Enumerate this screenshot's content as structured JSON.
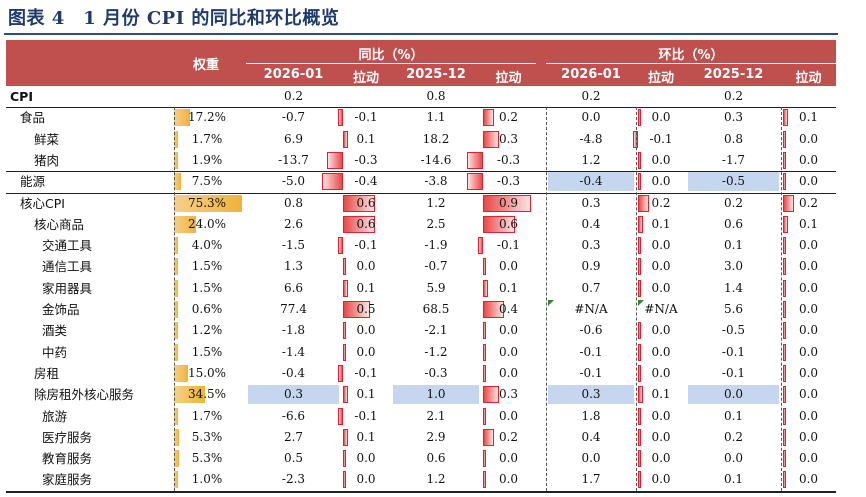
{
  "caption": "图表 4　1 月份 CPI 的同比和环比概览",
  "header": {
    "weight": "权重",
    "yoy_group": "同比（%）",
    "mom_group": "环比（%）",
    "cols": [
      "2026-01",
      "拉动",
      "2025-12",
      "拉动",
      "2026-01",
      "拉动",
      "2025-12",
      "拉动"
    ]
  },
  "colors": {
    "header": "#c0504d",
    "highlight": "#c6d6ee",
    "weight_bar": "#f2b13a",
    "pull_bar": "#e94848"
  },
  "rows": [
    {
      "name": "CPI",
      "indent": 0,
      "bold": true,
      "weight": "",
      "yoy_cur": "0.2",
      "yoy_cur_pull": "",
      "yoy_prev": "0.8",
      "yoy_prev_pull": "",
      "mom_cur": "0.2",
      "mom_cur_pull": "",
      "mom_prev": "0.2",
      "mom_prev_pull": ""
    },
    {
      "name": "食品",
      "indent": 1,
      "weight": "17.2%",
      "yoy_cur": "-0.7",
      "yoy_cur_pull": "-0.1",
      "yoy_prev": "1.1",
      "yoy_prev_pull": "0.2",
      "mom_cur": "0.0",
      "mom_cur_pull": "0.0",
      "mom_prev": "0.3",
      "mom_prev_pull": "0.1"
    },
    {
      "name": "鲜菜",
      "indent": 2,
      "weight": "1.7%",
      "yoy_cur": "6.9",
      "yoy_cur_pull": "0.1",
      "yoy_prev": "18.2",
      "yoy_prev_pull": "0.3",
      "mom_cur": "-4.8",
      "mom_cur_pull": "-0.1",
      "mom_prev": "0.8",
      "mom_prev_pull": "0.0"
    },
    {
      "name": "猪肉",
      "indent": 2,
      "weight": "1.9%",
      "yoy_cur": "-13.7",
      "yoy_cur_pull": "-0.3",
      "yoy_prev": "-14.6",
      "yoy_prev_pull": "-0.3",
      "mom_cur": "1.2",
      "mom_cur_pull": "0.0",
      "mom_prev": "-1.7",
      "mom_prev_pull": "0.0"
    },
    {
      "name": "能源",
      "indent": 1,
      "weight": "7.5%",
      "yoy_cur": "-5.0",
      "yoy_cur_pull": "-0.4",
      "yoy_prev": "-3.8",
      "yoy_prev_pull": "-0.3",
      "mom_cur": "-0.4",
      "mom_cur_pull": "0.0",
      "mom_prev": "-0.5",
      "mom_prev_pull": "0.0"
    },
    {
      "name": "核心CPI",
      "indent": 1,
      "weight": "75.3%",
      "yoy_cur": "0.8",
      "yoy_cur_pull": "0.6",
      "yoy_prev": "1.2",
      "yoy_prev_pull": "0.9",
      "mom_cur": "0.3",
      "mom_cur_pull": "0.2",
      "mom_prev": "0.2",
      "mom_prev_pull": "0.2"
    },
    {
      "name": "核心商品",
      "indent": 2,
      "weight": "24.0%",
      "yoy_cur": "2.6",
      "yoy_cur_pull": "0.6",
      "yoy_prev": "2.5",
      "yoy_prev_pull": "0.6",
      "mom_cur": "0.4",
      "mom_cur_pull": "0.1",
      "mom_prev": "0.6",
      "mom_prev_pull": "0.1"
    },
    {
      "name": "交通工具",
      "indent": 3,
      "weight": "4.0%",
      "yoy_cur": "-1.5",
      "yoy_cur_pull": "-0.1",
      "yoy_prev": "-1.9",
      "yoy_prev_pull": "-0.1",
      "mom_cur": "0.3",
      "mom_cur_pull": "0.0",
      "mom_prev": "0.1",
      "mom_prev_pull": "0.0"
    },
    {
      "name": "通信工具",
      "indent": 3,
      "weight": "1.5%",
      "yoy_cur": "1.3",
      "yoy_cur_pull": "0.0",
      "yoy_prev": "-0.7",
      "yoy_prev_pull": "0.0",
      "mom_cur": "0.9",
      "mom_cur_pull": "0.0",
      "mom_prev": "3.0",
      "mom_prev_pull": "0.0"
    },
    {
      "name": "家用器具",
      "indent": 3,
      "weight": "1.5%",
      "yoy_cur": "6.6",
      "yoy_cur_pull": "0.1",
      "yoy_prev": "5.9",
      "yoy_prev_pull": "0.1",
      "mom_cur": "0.7",
      "mom_cur_pull": "0.0",
      "mom_prev": "1.4",
      "mom_prev_pull": "0.0"
    },
    {
      "name": "金饰品",
      "indent": 3,
      "weight": "0.6%",
      "yoy_cur": "77.4",
      "yoy_cur_pull": "0.5",
      "yoy_prev": "68.5",
      "yoy_prev_pull": "0.4",
      "mom_cur": "#N/A",
      "mom_cur_pull": "#N/A",
      "mom_prev": "5.6",
      "mom_prev_pull": "0.0"
    },
    {
      "name": "酒类",
      "indent": 3,
      "weight": "1.2%",
      "yoy_cur": "-1.8",
      "yoy_cur_pull": "0.0",
      "yoy_prev": "-2.1",
      "yoy_prev_pull": "0.0",
      "mom_cur": "-0.6",
      "mom_cur_pull": "0.0",
      "mom_prev": "-0.5",
      "mom_prev_pull": "0.0"
    },
    {
      "name": "中药",
      "indent": 3,
      "weight": "1.5%",
      "yoy_cur": "-1.4",
      "yoy_cur_pull": "0.0",
      "yoy_prev": "-1.2",
      "yoy_prev_pull": "0.0",
      "mom_cur": "-0.1",
      "mom_cur_pull": "0.0",
      "mom_prev": "-0.1",
      "mom_prev_pull": "0.0"
    },
    {
      "name": "房租",
      "indent": 2,
      "weight": "15.0%",
      "yoy_cur": "-0.4",
      "yoy_cur_pull": "-0.1",
      "yoy_prev": "-0.3",
      "yoy_prev_pull": "0.0",
      "mom_cur": "-0.1",
      "mom_cur_pull": "0.0",
      "mom_prev": "-0.1",
      "mom_prev_pull": "0.0"
    },
    {
      "name": "除房租外核心服务",
      "indent": 2,
      "weight": "34.5%",
      "yoy_cur": "0.3",
      "yoy_cur_pull": "0.1",
      "yoy_prev": "1.0",
      "yoy_prev_pull": "0.3",
      "mom_cur": "0.3",
      "mom_cur_pull": "0.1",
      "mom_prev": "0.0",
      "mom_prev_pull": "0.0"
    },
    {
      "name": "旅游",
      "indent": 3,
      "weight": "1.7%",
      "yoy_cur": "-6.6",
      "yoy_cur_pull": "-0.1",
      "yoy_prev": "2.1",
      "yoy_prev_pull": "0.0",
      "mom_cur": "1.8",
      "mom_cur_pull": "0.0",
      "mom_prev": "0.1",
      "mom_prev_pull": "0.0"
    },
    {
      "name": "医疗服务",
      "indent": 3,
      "weight": "5.3%",
      "yoy_cur": "2.7",
      "yoy_cur_pull": "0.1",
      "yoy_prev": "2.9",
      "yoy_prev_pull": "0.2",
      "mom_cur": "0.4",
      "mom_cur_pull": "0.0",
      "mom_prev": "0.2",
      "mom_prev_pull": "0.0"
    },
    {
      "name": "教育服务",
      "indent": 3,
      "weight": "5.3%",
      "yoy_cur": "0.5",
      "yoy_cur_pull": "0.0",
      "yoy_prev": "0.6",
      "yoy_prev_pull": "0.0",
      "mom_cur": "0.0",
      "mom_cur_pull": "0.0",
      "mom_prev": "0.0",
      "mom_prev_pull": "0.0"
    },
    {
      "name": "家庭服务",
      "indent": 3,
      "weight": "1.0%",
      "yoy_cur": "-2.3",
      "yoy_cur_pull": "0.0",
      "yoy_prev": "1.2",
      "yoy_prev_pull": "0.0",
      "mom_cur": "1.7",
      "mom_cur_pull": "0.0",
      "mom_prev": "0.1",
      "mom_prev_pull": "0.0"
    }
  ],
  "highlights": {
    "能源": [
      "mom_cur",
      "mom_prev"
    ],
    "除房租外核心服务": [
      "yoy_cur",
      "yoy_prev",
      "mom_cur",
      "mom_prev"
    ]
  },
  "na_markers": [
    "mom_cur",
    "mom_cur_pull"
  ]
}
